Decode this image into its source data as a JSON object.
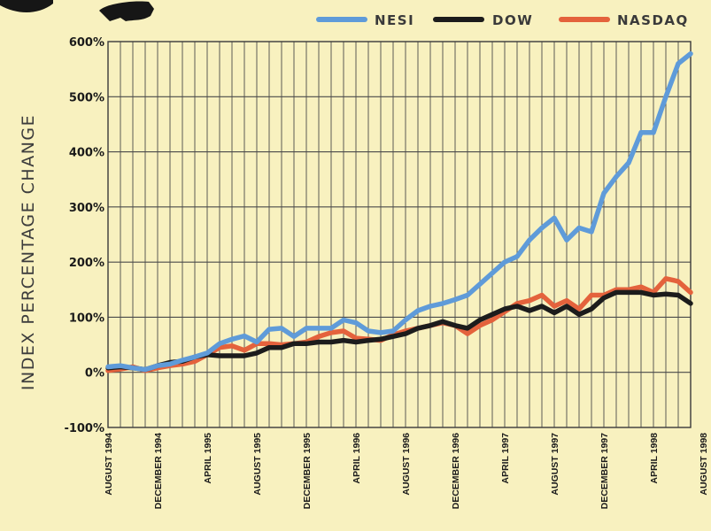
{
  "chart_data": {
    "type": "line",
    "ylabel": "INDEX PERCENTAGE CHANGE",
    "ylim": [
      -100,
      600
    ],
    "yticks": [
      "600%",
      "500%",
      "400%",
      "300%",
      "200%",
      "100%",
      "0%",
      "-100%"
    ],
    "ytick_values": [
      600,
      500,
      400,
      300,
      200,
      100,
      0,
      -100
    ],
    "xticks": [
      "AUGUST 1994",
      "DECEMBER 1994",
      "APRIL 1995",
      "AUGUST 1995",
      "DECEMBER 1995",
      "APRIL 1996",
      "AUGUST 1996",
      "DECEMBER 1996",
      "APRIL 1997",
      "AUGUST 1997",
      "DECEMBER 1997",
      "APRIL 1998",
      "AUGUST 1998"
    ],
    "xtick_positions": [
      0,
      4,
      8,
      12,
      16,
      20,
      24,
      28,
      32,
      36,
      40,
      44,
      48
    ],
    "legend_position": "top-right",
    "grid": true,
    "series": [
      {
        "name": "NESI",
        "color": "#5f9bd9",
        "values": [
          10,
          12,
          8,
          5,
          12,
          15,
          22,
          28,
          35,
          52,
          60,
          66,
          55,
          78,
          80,
          65,
          80,
          80,
          80,
          95,
          90,
          75,
          72,
          75,
          95,
          112,
          120,
          125,
          132,
          140,
          160,
          180,
          200,
          210,
          240,
          262,
          280,
          240,
          262,
          255,
          325,
          355,
          380,
          435,
          435,
          500,
          560,
          578
        ]
      },
      {
        "name": "DOW",
        "color": "#1c1c1c",
        "values": [
          8,
          10,
          8,
          5,
          12,
          18,
          20,
          28,
          32,
          30,
          30,
          30,
          35,
          45,
          45,
          52,
          52,
          55,
          55,
          58,
          55,
          58,
          60,
          65,
          70,
          80,
          85,
          92,
          85,
          80,
          95,
          105,
          115,
          120,
          112,
          120,
          108,
          120,
          105,
          115,
          135,
          145,
          145,
          145,
          140,
          142,
          140,
          125
        ]
      },
      {
        "name": "NASDAQ",
        "color": "#e4623c",
        "values": [
          3,
          6,
          10,
          3,
          8,
          12,
          15,
          20,
          32,
          45,
          48,
          40,
          52,
          52,
          50,
          52,
          55,
          65,
          72,
          75,
          62,
          60,
          58,
          68,
          75,
          80,
          85,
          90,
          85,
          70,
          85,
          95,
          110,
          125,
          130,
          140,
          120,
          130,
          115,
          140,
          140,
          150,
          150,
          155,
          145,
          170,
          165,
          145
        ]
      }
    ]
  }
}
